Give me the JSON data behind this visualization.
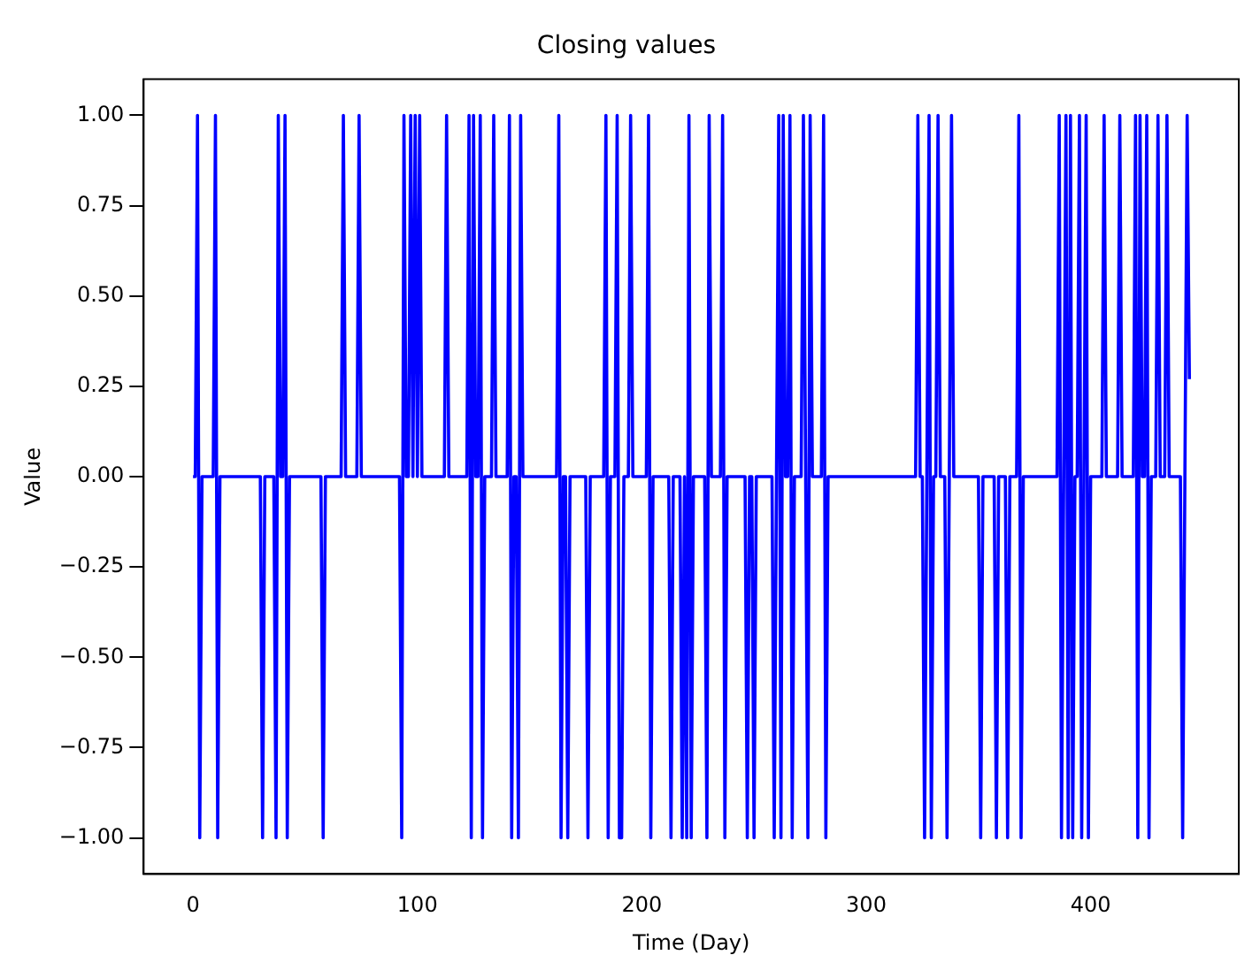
{
  "chart_data": {
    "type": "line",
    "title": "Closing values",
    "xlabel": "Time (Day)",
    "ylabel": "Value",
    "series": [
      {
        "color": "#0000ff",
        "x": [
          0,
          1,
          2,
          3,
          4,
          9,
          10,
          11,
          12,
          30,
          31,
          32,
          36,
          37,
          38,
          39,
          40,
          41,
          42,
          43,
          57,
          58,
          59,
          66,
          67,
          68,
          73,
          74,
          75,
          92,
          93,
          94,
          95,
          96,
          97,
          98,
          99,
          100,
          101,
          102,
          112,
          113,
          114,
          122,
          123,
          124,
          125,
          126,
          127,
          128,
          129,
          130,
          133,
          134,
          135,
          140,
          141,
          142,
          143,
          144,
          145,
          146,
          147,
          162,
          163,
          164,
          165,
          166,
          167,
          168,
          175,
          176,
          177,
          183,
          184,
          185,
          186,
          188,
          189,
          190,
          191,
          192,
          194,
          195,
          196,
          202,
          203,
          204,
          205,
          212,
          213,
          214,
          217,
          218,
          219,
          220,
          221,
          222,
          223,
          228,
          229,
          230,
          231,
          235,
          236,
          237,
          238,
          246,
          247,
          248,
          249,
          250,
          251,
          258,
          259,
          260,
          261,
          262,
          263,
          264,
          265,
          266,
          267,
          268,
          271,
          272,
          273,
          274,
          275,
          276,
          280,
          281,
          282,
          283,
          322,
          323,
          324,
          325,
          326,
          327,
          328,
          329,
          330,
          331,
          332,
          333,
          335,
          336,
          337,
          338,
          339,
          350,
          351,
          352,
          357,
          358,
          359,
          362,
          363,
          364,
          367,
          368,
          369,
          370,
          385,
          386,
          387,
          388,
          389,
          390,
          391,
          392,
          393,
          394,
          395,
          396,
          397,
          398,
          399,
          400,
          405,
          406,
          407,
          412,
          413,
          414,
          419,
          420,
          421,
          422,
          423,
          424,
          425,
          426,
          427,
          429,
          430,
          431,
          433,
          434,
          435,
          440,
          441,
          442,
          443,
          444
        ],
        "values": [
          0,
          0,
          1,
          -1,
          0,
          0,
          1,
          -1,
          0,
          0,
          -1,
          0,
          0,
          -1,
          1,
          0,
          0,
          1,
          -1,
          0,
          0,
          -1,
          0,
          0,
          1,
          0,
          0,
          1,
          0,
          0,
          -1,
          1,
          0,
          0,
          1,
          0,
          1,
          0,
          1,
          0,
          0,
          1,
          0,
          0,
          1,
          -1,
          1,
          0,
          0,
          1,
          -1,
          0,
          0,
          1,
          0,
          0,
          1,
          -1,
          0,
          0,
          -1,
          1,
          0,
          0,
          1,
          -1,
          0,
          0,
          -1,
          0,
          0,
          -1,
          0,
          0,
          1,
          -1,
          0,
          0,
          1,
          -1,
          -1,
          0,
          0,
          1,
          0,
          0,
          1,
          -1,
          0,
          0,
          -1,
          0,
          0,
          -1,
          0,
          -1,
          1,
          -1,
          0,
          0,
          -1,
          1,
          0,
          0,
          1,
          -1,
          0,
          0,
          -1,
          0,
          0,
          -1,
          0,
          0,
          -1,
          0,
          1,
          -1,
          1,
          0,
          0,
          1,
          -1,
          0,
          0,
          1,
          0,
          -1,
          1,
          0,
          0,
          1,
          -1,
          0,
          0,
          1,
          0,
          0,
          -1,
          0,
          1,
          -1,
          0,
          0,
          1,
          0,
          0,
          -1,
          0,
          1,
          0,
          0,
          -1,
          0,
          0,
          -1,
          0,
          0,
          -1,
          0,
          0,
          1,
          -1,
          0,
          0,
          1,
          -1,
          0,
          1,
          -1,
          1,
          -1,
          0,
          0,
          1,
          -1,
          0,
          1,
          -1,
          0,
          0,
          1,
          0,
          0,
          1,
          0,
          0,
          1,
          -1,
          1,
          0,
          0,
          1,
          -1,
          0,
          0,
          1,
          0,
          0,
          1,
          0,
          0,
          -1,
          0,
          1,
          0.27
        ]
      }
    ],
    "xlim": [
      -22,
      466
    ],
    "xticks": [
      0,
      100,
      200,
      300,
      400
    ],
    "ylim": [
      -1.1,
      1.1
    ],
    "yticks": [
      {
        "value": -1,
        "label": "−1.00"
      },
      {
        "value": -0.75,
        "label": "−0.75"
      },
      {
        "value": -0.5,
        "label": "−0.50"
      },
      {
        "value": -0.25,
        "label": "−0.25"
      },
      {
        "value": 0,
        "label": "0.00"
      },
      {
        "value": 0.25,
        "label": "0.25"
      },
      {
        "value": 0.5,
        "label": "0.50"
      },
      {
        "value": 0.75,
        "label": "0.75"
      },
      {
        "value": 1,
        "label": "1.00"
      }
    ],
    "grid": false,
    "legend": false,
    "marker": "none",
    "line_style": "solid"
  }
}
